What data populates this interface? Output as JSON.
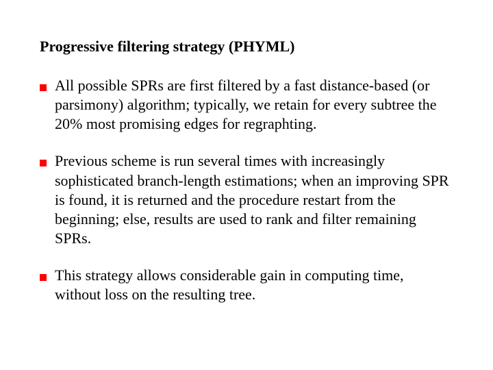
{
  "slide": {
    "title": "Progressive filtering strategy (PHYML)",
    "title_fontsize": 22,
    "title_color": "#000000",
    "body_fontsize": 22,
    "body_color": "#000000",
    "bullet_color": "#ff0000",
    "bullet_size": 10,
    "background_color": "#ffffff",
    "bullets": [
      "All possible SPRs are first filtered by a fast distance-based (or parsimony) algorithm; typically, we retain for every subtree the 20% most promising edges for regraphting.",
      "Previous scheme is run several times with increasingly sophisticated branch-length estimations; when an improving SPR is found, it is returned and the procedure restart from the beginning; else, results are used to rank and filter remaining SPRs.",
      "This strategy allows considerable gain in computing time, without loss on the resulting tree."
    ]
  }
}
